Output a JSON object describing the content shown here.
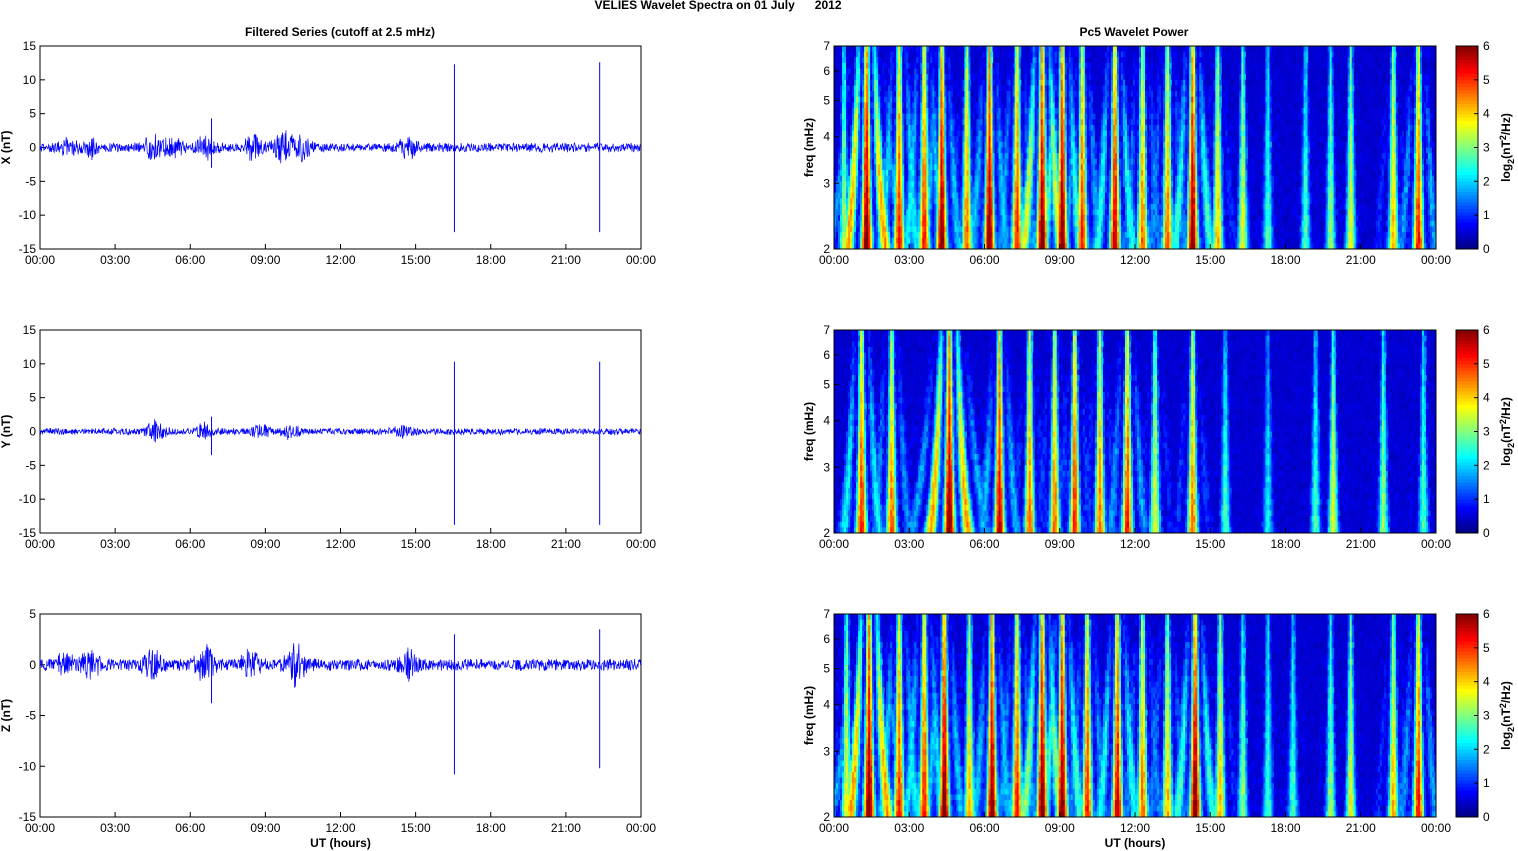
{
  "figure": {
    "suptitle": "VELIES Wavelet Spectra on 01 July      2012",
    "left_title": "Filtered Series (cutoff at 2.5 mHz)",
    "right_title": "Pc5 Wavelet Power",
    "xlabel": "UT (hours)",
    "ylabel_freq": "freq (mHz)",
    "colorbar_label": "log2(nT2/Hz)",
    "colorbar_label_parts": {
      "base": "log",
      "sub": "2",
      "open": "(nT",
      "sup": "2",
      "close": "/Hz)"
    },
    "time_ticks": [
      "00:00",
      "03:00",
      "06:00",
      "09:00",
      "12:00",
      "15:00",
      "18:00",
      "21:00",
      "00:00"
    ],
    "freq_ticks": [
      "2",
      "3",
      "4",
      "5",
      "6",
      "7"
    ],
    "colorbar_ticks": [
      "0",
      "1",
      "2",
      "3",
      "4",
      "5",
      "6"
    ]
  },
  "chart_data": [
    {
      "type": "line",
      "ylabel": "X (nT)",
      "xlim": [
        0,
        24
      ],
      "ylim": [
        -15,
        15
      ],
      "yticks": [
        "-15",
        "-10",
        "-5",
        "0",
        "5",
        "10",
        "15"
      ],
      "line_color": "#0000ff",
      "background_amplitude": 0.7,
      "bursts": [
        {
          "t": 1.1,
          "amp": 0.9
        },
        {
          "t": 2.0,
          "amp": 1.2
        },
        {
          "t": 4.5,
          "amp": 1.5
        },
        {
          "t": 5.3,
          "amp": 1.2
        },
        {
          "t": 6.6,
          "amp": 1.5
        },
        {
          "t": 8.5,
          "amp": 1.5
        },
        {
          "t": 9.7,
          "amp": 2.0
        },
        {
          "t": 10.4,
          "amp": 2.0
        },
        {
          "t": 14.7,
          "amp": 1.4
        }
      ],
      "spikes": [
        {
          "t": 6.85,
          "ymax": 4.3,
          "ymin": -3.0
        },
        {
          "t": 16.55,
          "ymax": 12.3,
          "ymin": -12.5
        },
        {
          "t": 22.35,
          "ymax": 12.6,
          "ymin": -12.5
        }
      ]
    },
    {
      "type": "line",
      "ylabel": "Y (nT)",
      "xlim": [
        0,
        24
      ],
      "ylim": [
        -15,
        15
      ],
      "yticks": [
        "-15",
        "-10",
        "-5",
        "0",
        "5",
        "10",
        "15"
      ],
      "line_color": "#0000ff",
      "background_amplitude": 0.5,
      "bursts": [
        {
          "t": 4.6,
          "amp": 1.6
        },
        {
          "t": 6.6,
          "amp": 1.0
        },
        {
          "t": 8.8,
          "amp": 0.8
        },
        {
          "t": 10.0,
          "amp": 0.8
        },
        {
          "t": 14.5,
          "amp": 0.7
        }
      ],
      "spikes": [
        {
          "t": 6.85,
          "ymax": 2.2,
          "ymin": -3.5
        },
        {
          "t": 16.55,
          "ymax": 10.3,
          "ymin": -13.8
        },
        {
          "t": 22.35,
          "ymax": 10.3,
          "ymin": -13.8
        }
      ]
    },
    {
      "type": "line",
      "ylabel": "Z (nT)",
      "xlim": [
        0,
        24
      ],
      "ylim": [
        -15,
        5
      ],
      "yticks": [
        "-15",
        "-10",
        "-5",
        "0",
        "5"
      ],
      "line_color": "#0000ff",
      "background_amplitude": 0.6,
      "bursts": [
        {
          "t": 1.0,
          "amp": 0.9
        },
        {
          "t": 2.0,
          "amp": 1.2
        },
        {
          "t": 4.5,
          "amp": 1.3
        },
        {
          "t": 6.6,
          "amp": 1.5
        },
        {
          "t": 8.4,
          "amp": 1.3
        },
        {
          "t": 10.2,
          "amp": 1.8
        },
        {
          "t": 14.7,
          "amp": 1.3
        }
      ],
      "spikes": [
        {
          "t": 6.85,
          "ymax": 1.0,
          "ymin": -3.8
        },
        {
          "t": 16.55,
          "ymax": 3.0,
          "ymin": -10.8
        },
        {
          "t": 22.35,
          "ymax": 3.5,
          "ymin": -10.2
        }
      ]
    },
    {
      "type": "heatmap",
      "ylabel": "freq (mHz)",
      "xlim": [
        0,
        24
      ],
      "ylim": [
        2,
        7
      ],
      "colorbar_range": [
        0,
        6
      ],
      "power_events": [
        {
          "t": 0.4,
          "p": 3.0,
          "w": 0.3
        },
        {
          "t": 1.3,
          "p": 6.0,
          "w": 1.0
        },
        {
          "t": 2.6,
          "p": 5.0,
          "w": 0.6
        },
        {
          "t": 3.6,
          "p": 5.0,
          "w": 0.6
        },
        {
          "t": 4.3,
          "p": 6.0,
          "w": 0.5
        },
        {
          "t": 5.3,
          "p": 4.5,
          "w": 0.4
        },
        {
          "t": 6.2,
          "p": 6.0,
          "w": 0.5
        },
        {
          "t": 7.3,
          "p": 5.0,
          "w": 0.5
        },
        {
          "t": 8.3,
          "p": 6.0,
          "w": 0.8
        },
        {
          "t": 9.1,
          "p": 6.0,
          "w": 0.6
        },
        {
          "t": 9.9,
          "p": 5.0,
          "w": 0.5
        },
        {
          "t": 11.2,
          "p": 5.5,
          "w": 0.6
        },
        {
          "t": 12.3,
          "p": 4.5,
          "w": 0.5
        },
        {
          "t": 13.3,
          "p": 4.5,
          "w": 0.5
        },
        {
          "t": 14.3,
          "p": 6.0,
          "w": 0.6
        },
        {
          "t": 15.3,
          "p": 4.0,
          "w": 0.4
        },
        {
          "t": 16.3,
          "p": 3.5,
          "w": 0.3
        },
        {
          "t": 17.3,
          "p": 2.5,
          "w": 0.3
        },
        {
          "t": 18.8,
          "p": 2.5,
          "w": 0.3
        },
        {
          "t": 19.8,
          "p": 3.0,
          "w": 0.3
        },
        {
          "t": 20.6,
          "p": 3.5,
          "w": 0.3
        },
        {
          "t": 22.3,
          "p": 4.0,
          "w": 0.4
        },
        {
          "t": 23.3,
          "p": 5.0,
          "w": 0.5
        }
      ]
    },
    {
      "type": "heatmap",
      "ylabel": "freq (mHz)",
      "xlim": [
        0,
        24
      ],
      "ylim": [
        2,
        7
      ],
      "colorbar_range": [
        0,
        6
      ],
      "power_events": [
        {
          "t": 1.1,
          "p": 5.0,
          "w": 0.6
        },
        {
          "t": 2.3,
          "p": 4.5,
          "w": 0.5
        },
        {
          "t": 4.6,
          "p": 6.0,
          "w": 1.0
        },
        {
          "t": 6.6,
          "p": 5.5,
          "w": 0.5
        },
        {
          "t": 7.8,
          "p": 4.5,
          "w": 0.4
        },
        {
          "t": 8.8,
          "p": 4.5,
          "w": 0.4
        },
        {
          "t": 9.6,
          "p": 5.0,
          "w": 0.4
        },
        {
          "t": 10.6,
          "p": 4.5,
          "w": 0.4
        },
        {
          "t": 11.7,
          "p": 5.0,
          "w": 0.5
        },
        {
          "t": 12.8,
          "p": 3.5,
          "w": 0.4
        },
        {
          "t": 14.3,
          "p": 4.5,
          "w": 0.4
        },
        {
          "t": 15.6,
          "p": 2.5,
          "w": 0.3
        },
        {
          "t": 17.3,
          "p": 2.0,
          "w": 0.3
        },
        {
          "t": 19.2,
          "p": 2.5,
          "w": 0.3
        },
        {
          "t": 19.9,
          "p": 3.5,
          "w": 0.3
        },
        {
          "t": 21.9,
          "p": 3.0,
          "w": 0.3
        },
        {
          "t": 23.5,
          "p": 2.5,
          "w": 0.3
        }
      ]
    },
    {
      "type": "heatmap",
      "ylabel": "freq (mHz)",
      "xlim": [
        0,
        24
      ],
      "ylim": [
        2,
        7
      ],
      "colorbar_range": [
        0,
        6
      ],
      "power_events": [
        {
          "t": 0.5,
          "p": 3.5,
          "w": 0.4
        },
        {
          "t": 1.4,
          "p": 6.0,
          "w": 1.0
        },
        {
          "t": 2.6,
          "p": 5.0,
          "w": 0.6
        },
        {
          "t": 3.6,
          "p": 5.0,
          "w": 0.6
        },
        {
          "t": 4.4,
          "p": 6.0,
          "w": 0.5
        },
        {
          "t": 5.4,
          "p": 4.0,
          "w": 0.4
        },
        {
          "t": 6.3,
          "p": 6.0,
          "w": 0.5
        },
        {
          "t": 7.3,
          "p": 5.0,
          "w": 0.5
        },
        {
          "t": 8.3,
          "p": 6.0,
          "w": 0.7
        },
        {
          "t": 9.1,
          "p": 6.0,
          "w": 0.6
        },
        {
          "t": 10.1,
          "p": 5.0,
          "w": 0.5
        },
        {
          "t": 11.3,
          "p": 5.5,
          "w": 0.6
        },
        {
          "t": 12.3,
          "p": 4.5,
          "w": 0.5
        },
        {
          "t": 13.3,
          "p": 4.0,
          "w": 0.5
        },
        {
          "t": 14.4,
          "p": 6.0,
          "w": 0.6
        },
        {
          "t": 15.4,
          "p": 4.0,
          "w": 0.4
        },
        {
          "t": 16.3,
          "p": 3.0,
          "w": 0.3
        },
        {
          "t": 17.3,
          "p": 2.5,
          "w": 0.3
        },
        {
          "t": 18.3,
          "p": 2.5,
          "w": 0.3
        },
        {
          "t": 19.8,
          "p": 3.0,
          "w": 0.3
        },
        {
          "t": 20.6,
          "p": 3.5,
          "w": 0.3
        },
        {
          "t": 22.3,
          "p": 4.0,
          "w": 0.4
        },
        {
          "t": 23.3,
          "p": 5.0,
          "w": 0.5
        }
      ]
    }
  ]
}
